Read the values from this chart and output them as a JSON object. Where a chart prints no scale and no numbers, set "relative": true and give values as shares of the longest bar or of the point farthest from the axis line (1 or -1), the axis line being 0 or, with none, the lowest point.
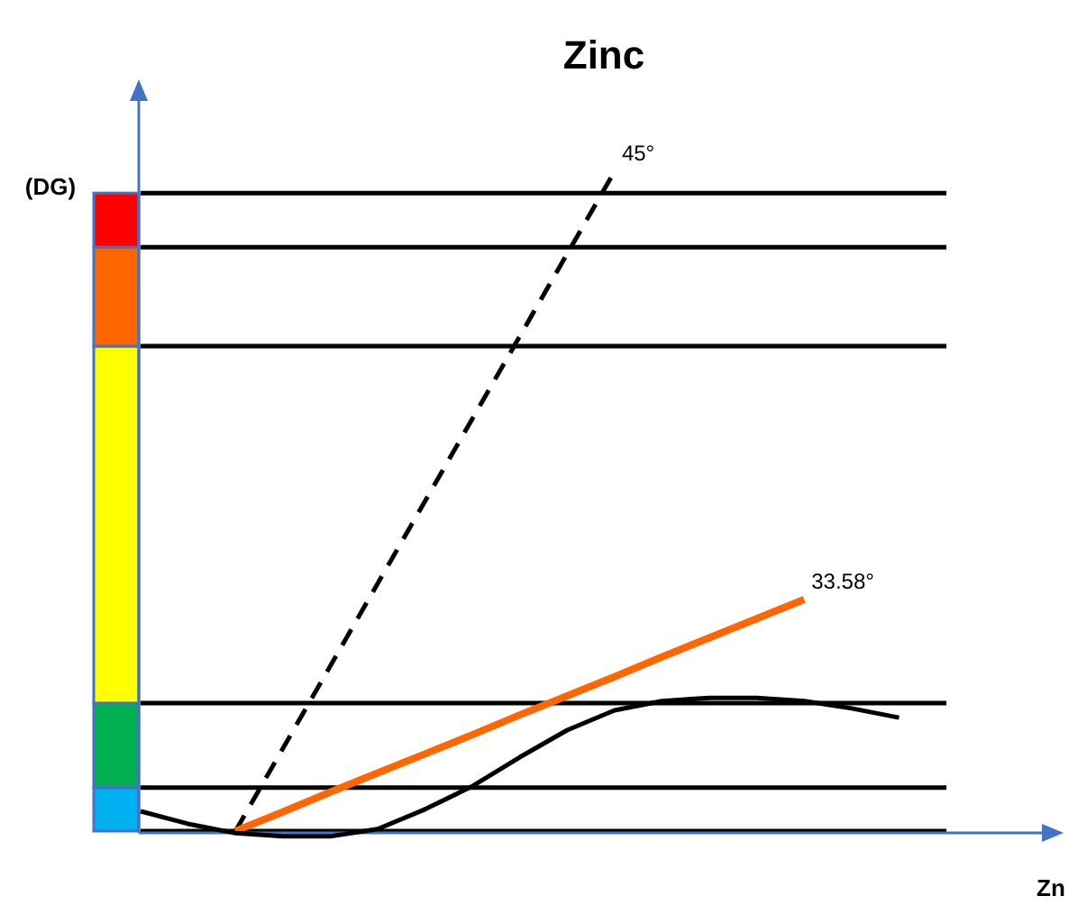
{
  "chart_data": {
    "type": "line",
    "title": "Zinc",
    "xlabel": "Zn",
    "ylabel": "(DG)",
    "relative": true,
    "categories": [
      null,
      null,
      null,
      null,
      null,
      null,
      null,
      null,
      null,
      null,
      null,
      null,
      null,
      null,
      null,
      null,
      null,
      null
    ],
    "series": [
      {
        "color": "#000000",
        "line_style": "dashed",
        "values": [
          null,
          null,
          0,
          0.125,
          0.25,
          0.375,
          0.5,
          0.625,
          0.75,
          0.875,
          1,
          null,
          null,
          null,
          null,
          null,
          null,
          null
        ]
      },
      {
        "color": "#ff6600",
        "line_style": "solid",
        "values": [
          null,
          null,
          0,
          0.029,
          0.059,
          0.088,
          0.117,
          0.146,
          0.176,
          0.205,
          0.234,
          0.264,
          0.293,
          0.322,
          0.351,
          null,
          null,
          null
        ]
      },
      {
        "color": "#000000",
        "line_style": "solid",
        "values": [
          0.03,
          0.011,
          -0.003,
          -0.008,
          -0.008,
          0.003,
          0.033,
          0.068,
          0.112,
          0.153,
          0.183,
          0.197,
          0.202,
          0.202,
          0.197,
          0.186,
          0.172,
          null
        ]
      }
    ],
    "ref_lines": [
      {
        "axis": "y",
        "value": 0,
        "color": "#000000"
      },
      {
        "axis": "y",
        "value": 0.066,
        "color": "#000000"
      },
      {
        "axis": "y",
        "value": 0.194,
        "color": "#000000"
      },
      {
        "axis": "y",
        "value": 0.735,
        "color": "#000000"
      },
      {
        "axis": "y",
        "value": 0.885,
        "color": "#000000"
      },
      {
        "axis": "y",
        "value": 0.967,
        "color": "#000000"
      }
    ],
    "annotations": [
      "45°",
      "33.58°"
    ]
  }
}
